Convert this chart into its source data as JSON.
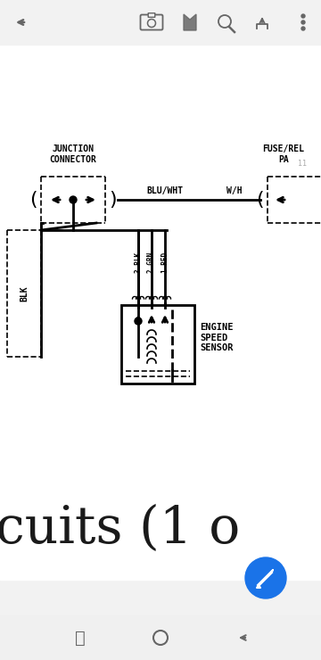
{
  "bg_color": "#f2f2f2",
  "white": "#ffffff",
  "line_color": "#000000",
  "gray_icon": "#666666",
  "toolbar_bg": "#f2f2f2",
  "junction_label1": "JUNCTION",
  "junction_label2": "CONNECTOR",
  "fuse_label1": "FUSE/REL",
  "fuse_label2": "PA",
  "fuse_num": "11",
  "wire_label1": "BLU/WHT",
  "wire_label2": "W/H",
  "pin3_label": "3 BLK",
  "pin2_label": "2 GRN",
  "pin1_label": "1 RED",
  "blk_label": "BLK",
  "sensor_label": "ENGINE\nSPEED\nSENSOR",
  "bottom_text": "cuits (1 o",
  "blue_btn_color": "#1a73e8",
  "nav_bar_color": "#f0f0f0",
  "lw": 2.0,
  "lw_thin": 1.2
}
